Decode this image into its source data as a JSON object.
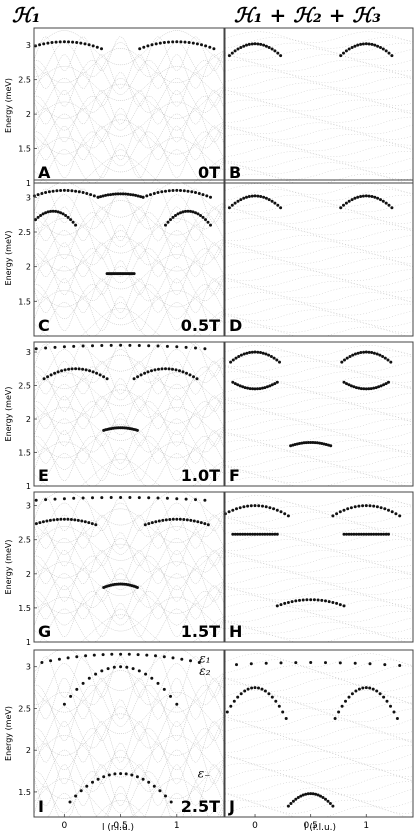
{
  "column_titles": [
    "ℋ₁",
    "ℋ₁ + ℋ₂ + ℋ₃"
  ],
  "ylabel": "Energy (meV)",
  "xlabel": "l (r.l.u.)",
  "x_ticks": [
    "0",
    "0.5",
    "1"
  ],
  "colors": {
    "band": "#b8b8b8",
    "mode": "#111111",
    "frame": "#444444"
  },
  "chart_data": [
    {
      "panel": "A",
      "field": "0T",
      "type": "scatter",
      "ylim": [
        1,
        3.25
      ],
      "y_ticks": [
        "1",
        "1.5",
        "2",
        "2.5",
        "3"
      ],
      "dispersion": [
        {
          "center": 0,
          "peak": 3.05,
          "halfwidth": 0.33,
          "min": 2.95
        },
        {
          "center": 1,
          "peak": 3.05,
          "halfwidth": 0.33,
          "min": 2.95
        }
      ]
    },
    {
      "panel": "B",
      "field": "",
      "type": "scatter",
      "ylim": [
        1,
        3.25
      ],
      "dispersion": [
        {
          "center": 0,
          "peak": 3.02,
          "halfwidth": 0.23,
          "min": 2.85
        },
        {
          "center": 1,
          "peak": 3.02,
          "halfwidth": 0.23,
          "min": 2.85
        }
      ]
    },
    {
      "panel": "C",
      "field": "0.5T",
      "type": "scatter",
      "ylim": [
        1,
        3.25
      ],
      "y_ticks": [
        "1.5",
        "2",
        "2.5",
        "3"
      ],
      "dispersion": [
        {
          "center": 0,
          "peak": 3.1,
          "halfwidth": 0.3,
          "min": 3.0
        },
        {
          "center": 1,
          "peak": 3.1,
          "halfwidth": 0.3,
          "min": 3.0
        },
        {
          "center": 0.5,
          "peak": 3.05,
          "halfwidth": 0.2,
          "min": 3.0
        },
        {
          "center": -0.1,
          "peak": 2.8,
          "halfwidth": 0.2,
          "min": 2.6
        },
        {
          "center": 1.1,
          "peak": 2.8,
          "halfwidth": 0.2,
          "min": 2.6
        },
        {
          "center": 0.5,
          "peak": 1.9,
          "halfwidth": 0.12,
          "min": 1.9
        }
      ]
    },
    {
      "panel": "D",
      "field": "",
      "type": "scatter",
      "ylim": [
        1,
        3.25
      ],
      "dispersion": [
        {
          "center": 0,
          "peak": 3.02,
          "halfwidth": 0.23,
          "min": 2.85
        },
        {
          "center": 1,
          "peak": 3.02,
          "halfwidth": 0.23,
          "min": 2.85
        }
      ]
    },
    {
      "panel": "E",
      "field": "1.0T",
      "type": "scatter",
      "ylim": [
        1,
        3.15
      ],
      "y_ticks": [
        "1",
        "1.5",
        "2",
        "2.5",
        "3"
      ],
      "dispersion": [
        {
          "center": 0.5,
          "peak": 3.1,
          "halfwidth": 0.75,
          "min": 3.05
        },
        {
          "center": 0.1,
          "peak": 2.75,
          "halfwidth": 0.28,
          "min": 2.6
        },
        {
          "center": 0.9,
          "peak": 2.75,
          "halfwidth": 0.28,
          "min": 2.6
        },
        {
          "center": 0.5,
          "peak": 1.87,
          "halfwidth": 0.15,
          "min": 1.83
        }
      ]
    },
    {
      "panel": "F",
      "field": "",
      "type": "scatter",
      "ylim": [
        1,
        3.15
      ],
      "dispersion": [
        {
          "center": 0,
          "peak": 3.0,
          "halfwidth": 0.22,
          "min": 2.85
        },
        {
          "center": 1,
          "peak": 3.0,
          "halfwidth": 0.22,
          "min": 2.85
        },
        {
          "center": 0,
          "peak": 2.45,
          "halfwidth": 0.2,
          "min": 2.55
        },
        {
          "center": 1,
          "peak": 2.45,
          "halfwidth": 0.2,
          "min": 2.55
        },
        {
          "center": 0.5,
          "peak": 1.65,
          "halfwidth": 0.18,
          "min": 1.6
        }
      ]
    },
    {
      "panel": "G",
      "field": "1.5T",
      "type": "scatter",
      "ylim": [
        1,
        3.2
      ],
      "y_ticks": [
        "1",
        "1.5",
        "2",
        "2.5",
        "3"
      ],
      "dispersion": [
        {
          "center": 0.5,
          "peak": 3.12,
          "halfwidth": 0.75,
          "min": 3.08
        },
        {
          "center": 0,
          "peak": 2.8,
          "halfwidth": 0.28,
          "min": 2.72
        },
        {
          "center": 1,
          "peak": 2.8,
          "halfwidth": 0.28,
          "min": 2.72
        },
        {
          "center": 0.5,
          "peak": 1.85,
          "halfwidth": 0.15,
          "min": 1.8
        }
      ]
    },
    {
      "panel": "H",
      "field": "",
      "type": "scatter",
      "ylim": [
        1,
        3.2
      ],
      "dispersion": [
        {
          "center": 0,
          "peak": 3.0,
          "halfwidth": 0.3,
          "min": 2.85
        },
        {
          "center": 1,
          "peak": 3.0,
          "halfwidth": 0.3,
          "min": 2.85
        },
        {
          "center": 0,
          "peak": 2.58,
          "halfwidth": 0.2,
          "min": 2.58
        },
        {
          "center": 1,
          "peak": 2.58,
          "halfwidth": 0.2,
          "min": 2.58
        },
        {
          "center": 0.5,
          "peak": 1.62,
          "halfwidth": 0.3,
          "min": 1.53
        }
      ]
    },
    {
      "panel": "I",
      "field": "2.5T",
      "type": "scatter",
      "ylim": [
        1.2,
        3.2
      ],
      "y_ticks": [
        "1.5",
        "2",
        "2.5",
        "3"
      ],
      "dispersion": [
        {
          "center": 0.5,
          "peak": 3.15,
          "halfwidth": 0.7,
          "min": 3.05
        },
        {
          "center": 0.5,
          "peak": 3.0,
          "halfwidth": 0.5,
          "min": 2.55
        },
        {
          "center": 0.5,
          "peak": 1.72,
          "halfwidth": 0.45,
          "min": 1.38
        }
      ],
      "annotations": [
        {
          "text": "ε₁",
          "x": 1.3,
          "y": 3.1
        },
        {
          "text": "ε₂",
          "x": 1.3,
          "y": 2.95
        },
        {
          "text": "ε₋",
          "x": 1.3,
          "y": 1.72
        }
      ]
    },
    {
      "panel": "J",
      "field": "",
      "type": "scatter",
      "ylim": [
        1.2,
        3.2
      ],
      "dispersion": [
        {
          "center": 0.5,
          "peak": 3.05,
          "halfwidth": 1.2,
          "min": 2.97
        },
        {
          "center": 0,
          "peak": 2.75,
          "halfwidth": 0.28,
          "min": 2.38
        },
        {
          "center": 1,
          "peak": 2.75,
          "halfwidth": 0.28,
          "min": 2.38
        },
        {
          "center": 0.5,
          "peak": 1.48,
          "halfwidth": 0.2,
          "min": 1.33
        }
      ]
    }
  ]
}
